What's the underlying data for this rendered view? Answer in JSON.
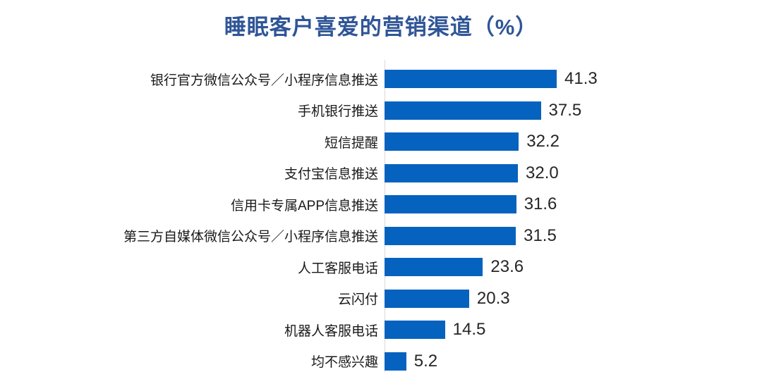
{
  "title": "睡眠客户喜爱的营销渠道（%）",
  "colors": {
    "bar": "#0562BE",
    "title_text": "#2F5597",
    "axis_line": "#D9D9D9",
    "label_text": "#1A1A1A",
    "value_text": "#262626",
    "background": "#FFFFFF"
  },
  "chart_data": {
    "type": "bar",
    "orientation": "horizontal",
    "title": "睡眠客户喜爱的营销渠道（%）",
    "categories": [
      "银行官方微信公众号／小程序信息推送",
      "手机银行推送",
      "短信提醒",
      "支付宝信息推送",
      "信用卡专属APP信息推送",
      "第三方自媒体微信公众号／小程序信息推送",
      "人工客服电话",
      "云闪付",
      "机器人客服电话",
      "均不感兴趣"
    ],
    "values": [
      41.3,
      37.5,
      32.2,
      32.0,
      31.6,
      31.5,
      23.6,
      20.3,
      14.5,
      5.2
    ],
    "value_labels": [
      "41.3",
      "37.5",
      "32.2",
      "32.0",
      "31.6",
      "31.5",
      "23.6",
      "20.3",
      "14.5",
      "5.2"
    ],
    "xlabel": "",
    "ylabel": "",
    "xlim": [
      0,
      45
    ],
    "grid": false,
    "legend": "none",
    "value_labels_shown": true,
    "bars_sorted": "descending"
  }
}
